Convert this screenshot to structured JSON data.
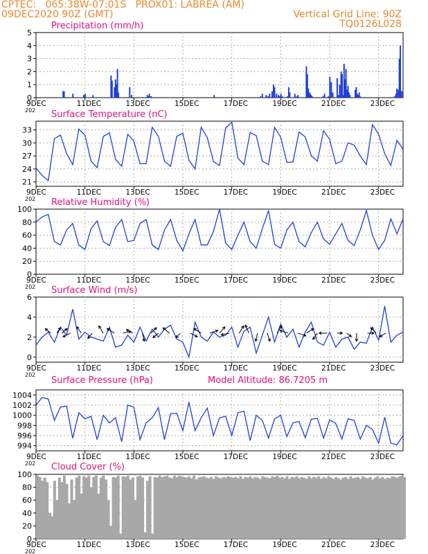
{
  "header": {
    "line1": "CPTEC:   065:38W-07:01S   PROX01: LABREA (AM)",
    "line2": "09DEC2020 90Z (GMT)",
    "grid_note": "Vertical Grid Line: 90Z",
    "code": "TQ0126L028"
  },
  "colors": {
    "header": "#e5892d",
    "title": "#e0107f",
    "line": "#1f3fd9",
    "bar": "#1f3fd9",
    "cloud": "#a8a8a8",
    "arrow": "#000000"
  },
  "x_axis": {
    "ticks": [
      {
        "d": 0,
        "label": "9DEC"
      },
      {
        "d": 2,
        "label": "11DEC"
      },
      {
        "d": 4,
        "label": "13DEC"
      },
      {
        "d": 6,
        "label": "15DEC"
      },
      {
        "d": 8,
        "label": "17DEC"
      },
      {
        "d": 10,
        "label": "19DEC"
      },
      {
        "d": 12,
        "label": "21DEC"
      },
      {
        "d": 14,
        "label": "23DEC"
      }
    ],
    "year_fragment": "202",
    "range_days": [
      0,
      15
    ]
  },
  "chart_data": [
    {
      "type": "bar",
      "title": "Precipitation (mm/h)",
      "ylim": [
        0,
        5
      ],
      "yticks": [
        "0",
        "1",
        "2",
        "3",
        "4",
        "5"
      ],
      "x_days": [
        1.08,
        1.12,
        1.48,
        1.92,
        1.98,
        2.3,
        3.04,
        3.08,
        3.18,
        3.22,
        3.26,
        3.3,
        3.34,
        3.8,
        3.88,
        4.52,
        4.56,
        4.6,
        4.64,
        4.68,
        7.25,
        9.15,
        9.22,
        9.38,
        9.45,
        9.52,
        9.62,
        9.68,
        9.72,
        9.8,
        9.88,
        9.92,
        9.98,
        10.04,
        10.24,
        10.3,
        10.34,
        10.55,
        10.62,
        10.68,
        11.02,
        11.06,
        11.1,
        11.14,
        11.18,
        11.22,
        11.26,
        11.7,
        11.76,
        11.92,
        11.98,
        12.04,
        12.1,
        12.28,
        12.34,
        12.38,
        12.44,
        12.48,
        12.52,
        12.56,
        12.6,
        12.64,
        12.68,
        12.72,
        12.76,
        12.8,
        13.02,
        13.06,
        13.1,
        13.14,
        13.18,
        13.22,
        14.62,
        14.68,
        14.72,
        14.78,
        14.82,
        14.86,
        14.92
      ],
      "values": [
        0.5,
        0.5,
        0.3,
        0.2,
        0.3,
        0.2,
        1.7,
        1.3,
        0.8,
        1.4,
        1.0,
        2.2,
        0.4,
        0.8,
        0.2,
        0.2,
        0.1,
        0.3,
        0.1,
        0.1,
        0.2,
        0.1,
        0.3,
        0.2,
        0.1,
        0.3,
        0.5,
        1.0,
        0.8,
        0.3,
        0.2,
        0.1,
        0.3,
        0.1,
        0.1,
        0.8,
        0.4,
        0.3,
        0.1,
        0.2,
        2.4,
        1.8,
        0.7,
        0.4,
        0.3,
        0.2,
        0.1,
        0.1,
        0.3,
        0.1,
        1.6,
        1.2,
        0.4,
        1.5,
        0.2,
        1.0,
        2.0,
        1.8,
        0.2,
        2.6,
        1.4,
        2.2,
        0.6,
        0.9,
        0.4,
        0.2,
        0.6,
        0.8,
        0.3,
        0.2,
        0.4,
        0.1,
        0.1,
        0.3,
        0.7,
        0.6,
        3.0,
        4.0,
        0.5
      ]
    },
    {
      "type": "line",
      "title": "Surface Temperature (nC)",
      "ylim": [
        20,
        35
      ],
      "yticks": [
        "21",
        "24",
        "27",
        "30",
        "33"
      ],
      "x_days": [
        0,
        0.25,
        0.5,
        0.75,
        1,
        1.25,
        1.5,
        1.75,
        2,
        2.25,
        2.5,
        2.75,
        3,
        3.25,
        3.5,
        3.75,
        4,
        4.25,
        4.5,
        4.75,
        5,
        5.25,
        5.5,
        5.75,
        6,
        6.25,
        6.5,
        6.75,
        7,
        7.25,
        7.5,
        7.75,
        8,
        8.25,
        8.5,
        8.75,
        9,
        9.25,
        9.5,
        9.75,
        10,
        10.25,
        10.5,
        10.75,
        11,
        11.25,
        11.5,
        11.75,
        12,
        12.25,
        12.5,
        12.75,
        13,
        13.25,
        13.5,
        13.75,
        14,
        14.25,
        14.5,
        14.75,
        15
      ],
      "values": [
        24.2,
        22.5,
        21.3,
        31.0,
        31.8,
        27.5,
        25.0,
        33.2,
        31.8,
        25.8,
        24.3,
        31.5,
        32.3,
        26.2,
        24.6,
        32.0,
        30.4,
        25.2,
        25.2,
        33.6,
        31.5,
        25.8,
        24.6,
        31.5,
        32.2,
        26.0,
        24.0,
        33.6,
        31.2,
        25.7,
        24.8,
        33.4,
        34.8,
        26.5,
        25.0,
        32.4,
        31.7,
        25.8,
        25.0,
        33.6,
        31.3,
        25.5,
        25.6,
        32.5,
        31.4,
        27.0,
        25.8,
        32.8,
        30.8,
        25.2,
        25.8,
        30.0,
        29.5,
        27.0,
        25.0,
        34.2,
        32.0,
        27.5,
        24.8,
        30.6,
        28.5
      ]
    },
    {
      "type": "line",
      "title": "Relative Humidity (%)",
      "ylim": [
        0,
        100
      ],
      "yticks": [
        "0",
        "20",
        "40",
        "60",
        "80",
        "100"
      ],
      "x_days": [
        0,
        0.25,
        0.5,
        0.75,
        1,
        1.25,
        1.5,
        1.75,
        2,
        2.25,
        2.5,
        2.75,
        3,
        3.25,
        3.5,
        3.75,
        4,
        4.25,
        4.5,
        4.75,
        5,
        5.25,
        5.5,
        5.75,
        6,
        6.25,
        6.5,
        6.75,
        7,
        7.25,
        7.5,
        7.75,
        8,
        8.25,
        8.5,
        8.75,
        9,
        9.25,
        9.5,
        9.75,
        10,
        10.25,
        10.5,
        10.75,
        11,
        11.25,
        11.5,
        11.75,
        12,
        12.25,
        12.5,
        12.75,
        13,
        13.25,
        13.5,
        13.75,
        14,
        14.25,
        14.5,
        14.75,
        15
      ],
      "values": [
        80,
        88,
        92,
        50,
        45,
        68,
        78,
        45,
        38,
        70,
        82,
        50,
        44,
        72,
        84,
        50,
        52,
        78,
        84,
        45,
        38,
        68,
        84,
        52,
        36,
        62,
        84,
        45,
        45,
        66,
        100,
        48,
        38,
        60,
        80,
        50,
        40,
        70,
        98,
        46,
        40,
        68,
        80,
        50,
        42,
        64,
        80,
        54,
        46,
        62,
        78,
        52,
        44,
        68,
        98,
        60,
        38,
        52,
        85,
        62,
        85
      ]
    },
    {
      "type": "line",
      "title": "Surface Wind (m/s)",
      "ylim": [
        -0.5,
        6
      ],
      "yticks": [
        "0",
        "2",
        "4",
        "6"
      ],
      "x_days": [
        0,
        0.25,
        0.5,
        0.75,
        1,
        1.25,
        1.5,
        1.75,
        2,
        2.25,
        2.5,
        2.75,
        3,
        3.25,
        3.5,
        3.75,
        4,
        4.25,
        4.5,
        4.75,
        5,
        5.25,
        5.5,
        5.75,
        6,
        6.25,
        6.5,
        6.75,
        7,
        7.25,
        7.5,
        7.75,
        8,
        8.25,
        8.5,
        8.75,
        9,
        9.25,
        9.5,
        9.75,
        10,
        10.25,
        10.5,
        10.75,
        11,
        11.25,
        11.5,
        11.75,
        12,
        12.25,
        12.5,
        12.75,
        13,
        13.25,
        13.5,
        13.75,
        14,
        14.25,
        14.5,
        14.75,
        15
      ],
      "values": [
        1.2,
        2.0,
        2.5,
        1.5,
        3.0,
        2.2,
        4.8,
        1.8,
        2.5,
        2.0,
        1.8,
        1.6,
        3.0,
        1.0,
        1.2,
        2.2,
        1.5,
        3.0,
        1.6,
        2.8,
        2.0,
        2.8,
        3.2,
        1.8,
        1.5,
        0.0,
        3.5,
        2.0,
        1.6,
        2.5,
        2.0,
        2.2,
        3.0,
        1.0,
        2.6,
        3.0,
        0.4,
        2.2,
        4.0,
        1.5,
        3.3,
        2.0,
        2.8,
        1.0,
        2.5,
        3.5,
        1.5,
        1.2,
        2.5,
        1.0,
        1.8,
        2.0,
        0.8,
        1.5,
        1.4,
        3.0,
        1.7,
        5.1,
        1.5,
        2.2,
        2.5
      ],
      "vectors": [
        {
          "d": 0.6,
          "u": -0.6,
          "v": 0.5
        },
        {
          "d": 0.85,
          "u": 0.4,
          "v": 0.6
        },
        {
          "d": 1.05,
          "u": 0.6,
          "v": 0.5
        },
        {
          "d": 1.4,
          "u": -0.8,
          "v": -0.4
        },
        {
          "d": 1.85,
          "u": -0.5,
          "v": 0.7
        },
        {
          "d": 2.3,
          "u": -0.5,
          "v": -0.6
        },
        {
          "d": 2.75,
          "u": -0.5,
          "v": 0.8
        },
        {
          "d": 3.2,
          "u": -0.8,
          "v": 0.5
        },
        {
          "d": 3.55,
          "u": 0.9,
          "v": 0.2
        },
        {
          "d": 3.95,
          "u": -0.7,
          "v": 0.4
        },
        {
          "d": 4.35,
          "u": 0.2,
          "v": -0.9
        },
        {
          "d": 4.7,
          "u": 0.6,
          "v": 0.6
        },
        {
          "d": 5.0,
          "u": -0.6,
          "v": -0.5
        },
        {
          "d": 5.45,
          "u": -0.7,
          "v": 0.6
        },
        {
          "d": 5.9,
          "u": -0.5,
          "v": -0.5
        },
        {
          "d": 6.3,
          "u": 0.8,
          "v": -0.4
        },
        {
          "d": 6.75,
          "u": -0.8,
          "v": 0.5
        },
        {
          "d": 7.1,
          "u": 0.9,
          "v": 0.3
        },
        {
          "d": 7.5,
          "u": 0.6,
          "v": 0.7
        },
        {
          "d": 7.9,
          "u": -0.9,
          "v": -0.2
        },
        {
          "d": 8.3,
          "u": 0.5,
          "v": 0.8
        },
        {
          "d": 8.7,
          "u": -0.4,
          "v": 0.9
        },
        {
          "d": 9.05,
          "u": -0.2,
          "v": -0.9
        },
        {
          "d": 9.45,
          "u": 0.3,
          "v": -0.9
        },
        {
          "d": 9.85,
          "u": 0.5,
          "v": 0.8
        },
        {
          "d": 10.3,
          "u": -0.9,
          "v": 0.3
        },
        {
          "d": 10.7,
          "u": 0.9,
          "v": -0.3
        },
        {
          "d": 11.05,
          "u": 0.8,
          "v": 0.5
        },
        {
          "d": 11.5,
          "u": -0.5,
          "v": -0.7
        },
        {
          "d": 11.9,
          "u": -0.9,
          "v": 0.0
        },
        {
          "d": 12.3,
          "u": 0.6,
          "v": 0.0
        },
        {
          "d": 12.7,
          "u": 0.5,
          "v": -0.4
        },
        {
          "d": 13.1,
          "u": 0.0,
          "v": -0.9
        },
        {
          "d": 13.55,
          "u": 0.7,
          "v": 0.0
        },
        {
          "d": 13.9,
          "u": -0.6,
          "v": 0.6
        },
        {
          "d": 14.3,
          "u": -0.7,
          "v": -0.4
        }
      ]
    },
    {
      "type": "line",
      "title": "Surface Pressure (hPa)",
      "annotation": "Model Altitude: 86.7205 m",
      "ylim": [
        993,
        1005
      ],
      "yticks": [
        "994",
        "996",
        "998",
        "1000",
        "1002",
        "1004"
      ],
      "x_days": [
        0,
        0.25,
        0.5,
        0.75,
        1,
        1.25,
        1.5,
        1.75,
        2,
        2.25,
        2.5,
        2.75,
        3,
        3.25,
        3.5,
        3.75,
        4,
        4.25,
        4.5,
        4.75,
        5,
        5.25,
        5.5,
        5.75,
        6,
        6.25,
        6.5,
        6.75,
        7,
        7.25,
        7.5,
        7.75,
        8,
        8.25,
        8.5,
        8.75,
        9,
        9.25,
        9.5,
        9.75,
        10,
        10.25,
        10.5,
        10.75,
        11,
        11.25,
        11.5,
        11.75,
        12,
        12.25,
        12.5,
        12.75,
        13,
        13.25,
        13.5,
        13.75,
        14,
        14.25,
        14.5,
        14.75,
        15
      ],
      "values": [
        1002.0,
        1003.5,
        1003.2,
        999.0,
        1001.6,
        1001.8,
        995.5,
        1000.5,
        999.3,
        999.8,
        995.2,
        1000.0,
        998.5,
        999.5,
        994.8,
        1002.0,
        1001.6,
        995.2,
        998.5,
        999.5,
        1001.5,
        995.2,
        1000.3,
        1000.4,
        997.0,
        1002.6,
        997.0,
        999.5,
        1001.4,
        996.0,
        999.5,
        999.8,
        996.0,
        1000.5,
        1000.8,
        995.0,
        1000.0,
        999.0,
        995.5,
        999.3,
        1000.0,
        995.8,
        998.5,
        998.8,
        995.6,
        999.2,
        999.4,
        995.5,
        999.1,
        998.4,
        995.3,
        999.3,
        999.0,
        995.3,
        998.0,
        997.2,
        994.5,
        999.6,
        994.5,
        994.2,
        996.0
      ]
    },
    {
      "type": "area",
      "title": "Cloud Cover (%)",
      "ylim": [
        0,
        100
      ],
      "yticks": [
        "0",
        "20",
        "40",
        "60",
        "80",
        "100"
      ],
      "x_days": [
        0,
        0.1,
        0.2,
        0.3,
        0.4,
        0.5,
        0.6,
        0.7,
        0.8,
        0.9,
        1,
        1.1,
        1.2,
        1.3,
        1.4,
        1.5,
        1.6,
        1.7,
        1.8,
        1.9,
        2,
        2.1,
        2.2,
        2.3,
        2.4,
        2.5,
        2.6,
        2.7,
        2.8,
        2.9,
        3,
        3.1,
        3.2,
        3.3,
        3.4,
        3.5,
        3.6,
        3.7,
        3.8,
        3.9,
        4,
        4.1,
        4.2,
        4.3,
        4.4,
        4.5,
        4.6,
        4.7,
        4.8,
        4.9,
        5,
        5.1,
        5.2,
        5.3,
        5.4,
        5.5,
        5.6,
        5.7,
        5.8,
        5.9,
        6,
        6.1,
        6.2,
        6.3,
        6.4,
        6.5,
        6.6,
        6.7,
        6.8,
        6.9,
        7,
        7.1,
        7.2,
        7.3,
        7.4,
        7.5,
        7.6,
        7.7,
        7.8,
        7.9,
        8,
        8.1,
        8.2,
        8.3,
        8.4,
        8.5,
        8.6,
        8.7,
        8.8,
        8.9,
        9,
        9.1,
        9.2,
        9.3,
        9.4,
        9.5,
        9.6,
        9.7,
        9.8,
        9.9,
        10,
        10.1,
        10.2,
        10.3,
        10.4,
        10.5,
        10.6,
        10.7,
        10.8,
        10.9,
        11,
        11.1,
        11.2,
        11.3,
        11.4,
        11.5,
        11.6,
        11.7,
        11.8,
        11.9,
        12,
        12.1,
        12.2,
        12.3,
        12.4,
        12.5,
        12.6,
        12.7,
        12.8,
        12.9,
        13,
        13.1,
        13.2,
        13.3,
        13.4,
        13.5,
        13.6,
        13.7,
        13.8,
        13.9,
        14,
        14.1,
        14.2,
        14.3,
        14.4,
        14.5,
        14.6,
        14.7,
        14.8,
        14.9,
        15
      ],
      "values": [
        98,
        96,
        90,
        95,
        88,
        40,
        35,
        90,
        60,
        95,
        88,
        98,
        85,
        55,
        92,
        60,
        95,
        98,
        70,
        97,
        95,
        98,
        80,
        96,
        98,
        70,
        95,
        98,
        92,
        60,
        20,
        96,
        95,
        98,
        8,
        97,
        96,
        98,
        92,
        95,
        60,
        97,
        98,
        95,
        10,
        90,
        97,
        8,
        96,
        95,
        98,
        96,
        97,
        98,
        95,
        94,
        98,
        96,
        98,
        97,
        96,
        95,
        97,
        94,
        98,
        92,
        95,
        96,
        97,
        95,
        94,
        96,
        93,
        97,
        95,
        94,
        96,
        95,
        97,
        96,
        95,
        96,
        94,
        97,
        93,
        96,
        95,
        97,
        94,
        96,
        95,
        93,
        97,
        96,
        95,
        94,
        97,
        96,
        98,
        95,
        96,
        94,
        97,
        93,
        96,
        95,
        97,
        94,
        96,
        95,
        93,
        97,
        94,
        96,
        95,
        97,
        93,
        96,
        94,
        97,
        95,
        93,
        96,
        94,
        92,
        95,
        96,
        93,
        97,
        94,
        95,
        96,
        93,
        97,
        95,
        94,
        96,
        92,
        95,
        97,
        94,
        96,
        93,
        95,
        94,
        97,
        96,
        95,
        97,
        98,
        96
      ]
    }
  ]
}
